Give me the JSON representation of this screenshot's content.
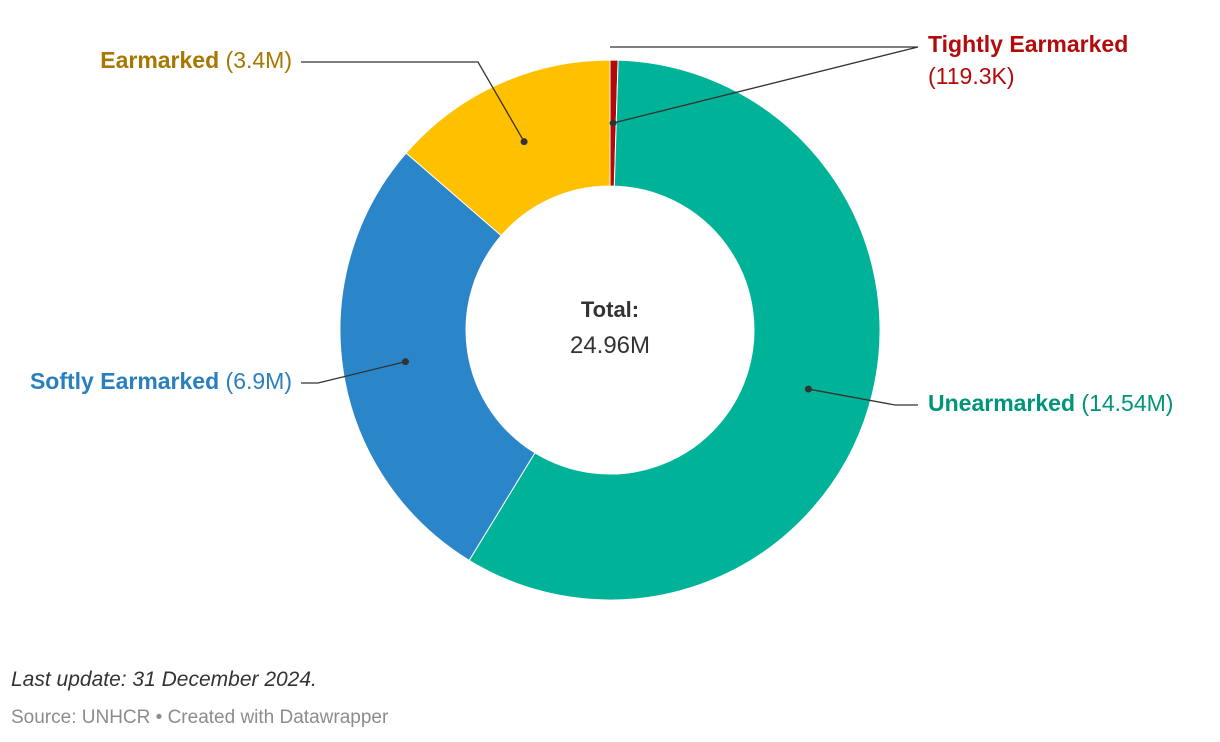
{
  "chart_data": {
    "type": "pie",
    "variant": "donut",
    "center_label": {
      "title": "Total:",
      "value": "24.96M"
    },
    "slices": [
      {
        "name": "Tightly Earmarked",
        "value": 0.1193,
        "value_label": "(119.3K)",
        "color": "#b30b0b",
        "text_color": "#b30b0b"
      },
      {
        "name": "Unearmarked",
        "value": 14.54,
        "value_label": "(14.54M)",
        "color": "#00b398",
        "text_color": "#00957a"
      },
      {
        "name": "Softly Earmarked",
        "value": 6.9,
        "value_label": "(6.9M)",
        "color": "#2a86c8",
        "text_color": "#2a7fbf"
      },
      {
        "name": "Earmarked",
        "value": 3.4,
        "value_label": "(3.4M)",
        "color": "#ffc000",
        "text_color": "#a87700"
      }
    ],
    "units": "M"
  },
  "footer": {
    "note": "Last update: 31 December 2024.",
    "source": "Source: UNHCR • Created with Datawrapper"
  }
}
